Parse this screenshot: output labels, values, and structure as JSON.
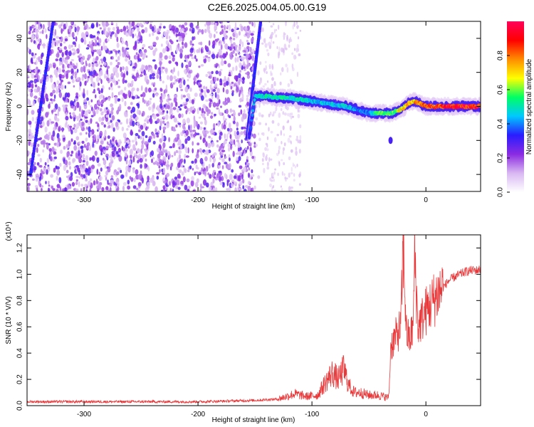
{
  "figure": {
    "title": "C2E6.2025.004.05.00.G19"
  },
  "chart_data": [
    {
      "type": "heatmap",
      "title": "C2E6.2025.004.05.00.G19",
      "xlabel": "Height of straight line (km)",
      "ylabel": "Frequency (Hz)",
      "xlim": [
        -350,
        48
      ],
      "ylim": [
        -50,
        50
      ],
      "x_ticks": [
        -300,
        -200,
        -100,
        0
      ],
      "x_tick_labels": [
        "-300",
        "-200",
        "-100",
        "0"
      ],
      "y_ticks": [
        -40,
        -20,
        0,
        20,
        40
      ],
      "y_tick_labels": [
        "-40",
        "-20",
        "0",
        "20",
        "40"
      ],
      "grid": false,
      "colorbar": {
        "label": "Normalized spectral amplitude",
        "range": [
          0,
          1
        ],
        "ticks": [
          0,
          0.2,
          0.4,
          0.6,
          0.8
        ],
        "tick_labels": [
          "0.0",
          "0.2",
          "0.4",
          "0.6",
          "0.8"
        ],
        "colormap": "white-purple-blue-cyan-green-yellow-red",
        "stops": [
          "#ffffff",
          "#d9b8f2",
          "#8b2be2",
          "#2a1cff",
          "#00c8ff",
          "#00ff64",
          "#ffff00",
          "#ff8c00",
          "#ff0000",
          "#ff005a"
        ]
      },
      "features": {
        "noise_region": [
          -350,
          -150
        ],
        "sparse_region": [
          -150,
          -110
        ],
        "signal_track": {
          "x": [
            -155,
            -150,
            -140,
            -130,
            -120,
            -110,
            -100,
            -90,
            -80,
            -70,
            -60,
            -50,
            -40,
            -30,
            -20,
            -15,
            -10,
            0,
            10,
            20,
            30,
            40,
            48
          ],
          "freq": [
            -18,
            6,
            6,
            5,
            5,
            4,
            3,
            2,
            1,
            0,
            -2,
            -4,
            -4,
            -4,
            -1,
            2,
            3,
            0,
            0,
            0,
            0,
            0,
            0
          ],
          "amplitude": [
            0.3,
            0.45,
            0.5,
            0.5,
            0.5,
            0.5,
            0.45,
            0.45,
            0.45,
            0.45,
            0.4,
            0.4,
            0.6,
            0.55,
            0.7,
            0.7,
            0.75,
            0.85,
            0.85,
            0.9,
            0.9,
            0.9,
            0.85
          ]
        },
        "diagonal_streaks": [
          {
            "x": [
              -347,
              -327
            ],
            "freq": [
              -40,
              50
            ]
          },
          {
            "x": [
              -157,
              -145
            ],
            "freq": [
              -18,
              50
            ]
          }
        ],
        "blob": {
          "x": -31,
          "freq": -20
        }
      }
    },
    {
      "type": "line",
      "xlabel": "Height of straight line (km)",
      "ylabel": "SNR (10 * V/V)",
      "y_multiplier_label": "(x10⁴)",
      "xlim": [
        -350,
        48
      ],
      "ylim": [
        0,
        1.3
      ],
      "x_ticks": [
        -300,
        -200,
        -100,
        0
      ],
      "x_tick_labels": [
        "-300",
        "-200",
        "-100",
        "0"
      ],
      "y_ticks": [
        0,
        0.2,
        0.4,
        0.6,
        0.8,
        1.0,
        1.2
      ],
      "y_tick_labels": [
        "0.0",
        "0.2",
        "0.4",
        "0.6",
        "0.8",
        "1.0",
        "1.2"
      ],
      "grid": false,
      "line_color": "#e8383a",
      "series": [
        {
          "x": [
            -350,
            -300,
            -250,
            -200,
            -150,
            -130,
            -115,
            -105,
            -95,
            -88,
            -82,
            -77,
            -72,
            -68,
            -63,
            -58,
            -50,
            -42,
            -37,
            -33,
            -32,
            -31,
            -28,
            -25,
            -22,
            -20,
            -17,
            -14,
            -11,
            -10,
            -7,
            -4,
            0,
            5,
            10,
            15,
            20,
            25,
            30,
            35,
            40,
            45,
            48
          ],
          "values": [
            0.03,
            0.03,
            0.03,
            0.03,
            0.04,
            0.05,
            0.09,
            0.07,
            0.08,
            0.18,
            0.25,
            0.2,
            0.28,
            0.16,
            0.1,
            0.1,
            0.08,
            0.08,
            0.07,
            0.06,
            0.15,
            0.45,
            0.5,
            0.55,
            0.6,
            1.22,
            0.55,
            0.5,
            0.62,
            1.18,
            0.6,
            0.65,
            0.72,
            0.78,
            0.85,
            0.9,
            0.95,
            0.98,
            1.0,
            1.02,
            1.03,
            1.03,
            1.04
          ]
        }
      ]
    }
  ]
}
